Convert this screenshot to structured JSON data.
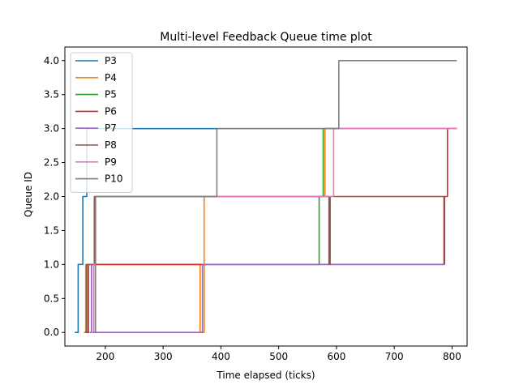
{
  "chart_data": {
    "type": "line",
    "title": "Multi-level Feedback Queue time plot",
    "xlabel": "Time elapsed (ticks)",
    "ylabel": "Queue ID",
    "xlim": [
      130,
      826
    ],
    "ylim": [
      -0.2,
      4.2
    ],
    "xticks": [
      200,
      300,
      400,
      500,
      600,
      700,
      800
    ],
    "yticks": [
      0.0,
      0.5,
      1.0,
      1.5,
      2.0,
      2.5,
      3.0,
      3.5,
      4.0
    ],
    "xtick_labels": [
      "200",
      "300",
      "400",
      "500",
      "600",
      "700",
      "800"
    ],
    "ytick_labels": [
      "0.0",
      "0.5",
      "1.0",
      "1.5",
      "2.0",
      "2.5",
      "3.0",
      "3.5",
      "4.0"
    ],
    "grid": false,
    "legend_position": "upper-left",
    "series": [
      {
        "name": "P3",
        "color": "#1f77b4",
        "x": [
          147,
          153,
          153,
          161,
          161,
          165,
          165,
          168,
          168,
          808
        ],
        "y": [
          0,
          0,
          1,
          1,
          2,
          2,
          2,
          2,
          3,
          3
        ]
      },
      {
        "name": "P4",
        "color": "#ff7f0e",
        "x": [
          163,
          166,
          166,
          364,
          364,
          371,
          371,
          580,
          580,
          808
        ],
        "y": [
          0,
          0,
          1,
          1,
          0,
          0,
          2,
          2,
          3,
          3
        ]
      },
      {
        "name": "P5",
        "color": "#2ca02c",
        "x": [
          166,
          168,
          168,
          570,
          570,
          577,
          577,
          808
        ],
        "y": [
          0,
          0,
          1,
          1,
          2,
          2,
          3,
          3
        ]
      },
      {
        "name": "P6",
        "color": "#d62728",
        "x": [
          168,
          171,
          171,
          786,
          786,
          792,
          792,
          808
        ],
        "y": [
          0,
          0,
          1,
          1,
          2,
          2,
          3,
          3
        ]
      },
      {
        "name": "P7",
        "color": "#9467bd",
        "x": [
          173,
          176,
          176,
          180,
          180,
          368,
          368,
          378,
          378,
          787
        ],
        "y": [
          0,
          0,
          1,
          1,
          0,
          0,
          1,
          1,
          1,
          1
        ]
      },
      {
        "name": "P8",
        "color": "#8c564b",
        "x": [
          165,
          168,
          168,
          181,
          181,
          587,
          587,
          589,
          589,
          787,
          787
        ],
        "y": [
          0,
          0,
          1,
          1,
          2,
          2,
          1,
          1,
          2,
          2,
          1
        ]
      },
      {
        "name": "P9",
        "color": "#e377c2",
        "x": [
          176,
          180,
          180,
          183,
          183,
          595,
          595,
          808
        ],
        "y": [
          0,
          0,
          1,
          1,
          2,
          2,
          3,
          3
        ]
      },
      {
        "name": "P10",
        "color": "#7f7f7f",
        "x": [
          179,
          183,
          183,
          393,
          393,
          604,
          604,
          808
        ],
        "y": [
          0,
          0,
          2,
          2,
          3,
          3,
          4,
          4
        ]
      }
    ]
  }
}
